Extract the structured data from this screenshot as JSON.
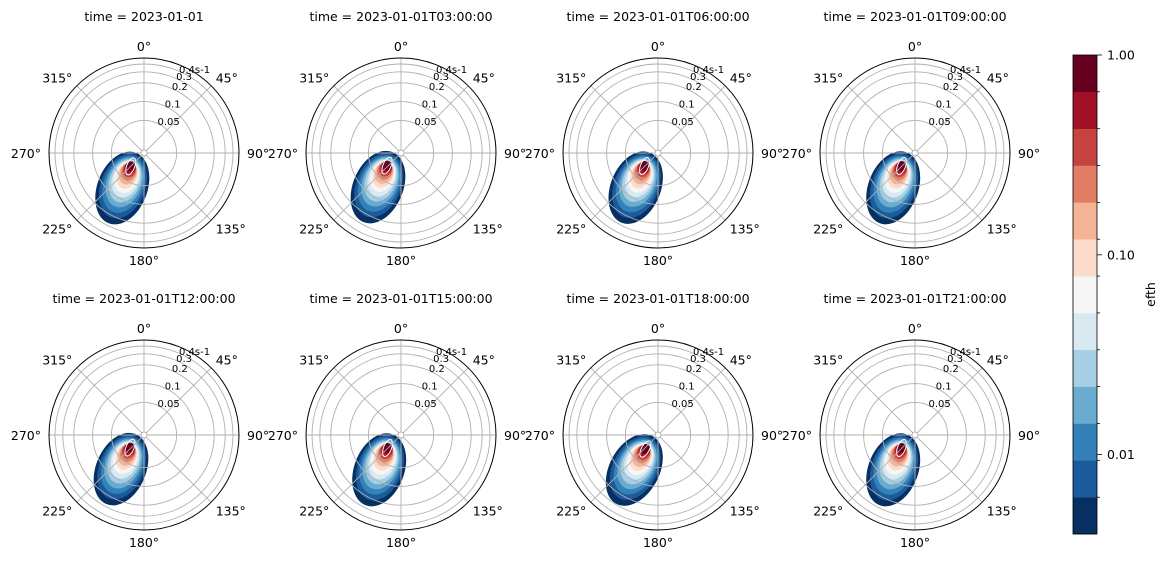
{
  "chart_data": {
    "type": "heatmap",
    "subtype": "polar-directional-spectrum",
    "panels": [
      {
        "title": "time = 2023-01-01",
        "peak_dir_deg": 225,
        "peak_freq": 0.03,
        "tail_dir_deg": 208,
        "tail_freq": 0.16
      },
      {
        "title": "time = 2023-01-01T03:00:00",
        "peak_dir_deg": 228,
        "peak_freq": 0.03,
        "tail_dir_deg": 210,
        "tail_freq": 0.16
      },
      {
        "title": "time = 2023-01-01T06:00:00",
        "peak_dir_deg": 226,
        "peak_freq": 0.03,
        "tail_dir_deg": 209,
        "tail_freq": 0.16
      },
      {
        "title": "time = 2023-01-01T09:00:00",
        "peak_dir_deg": 226,
        "peak_freq": 0.03,
        "tail_dir_deg": 208,
        "tail_freq": 0.16
      },
      {
        "title": "time = 2023-01-01T12:00:00",
        "peak_dir_deg": 228,
        "peak_freq": 0.03,
        "tail_dir_deg": 210,
        "tail_freq": 0.16
      },
      {
        "title": "time = 2023-01-01T15:00:00",
        "peak_dir_deg": 226,
        "peak_freq": 0.03,
        "tail_dir_deg": 208,
        "tail_freq": 0.16
      },
      {
        "title": "time = 2023-01-01T18:00:00",
        "peak_dir_deg": 222,
        "peak_freq": 0.03,
        "tail_dir_deg": 212,
        "tail_freq": 0.17
      },
      {
        "title": "time = 2023-01-01T21:00:00",
        "peak_dir_deg": 226,
        "peak_freq": 0.03,
        "tail_dir_deg": 208,
        "tail_freq": 0.16
      }
    ],
    "direction_ticks": [
      "0°",
      "45°",
      "90°",
      "135°",
      "180°",
      "225°",
      "270°",
      "315°"
    ],
    "direction_tick_deg": [
      0,
      45,
      90,
      135,
      180,
      225,
      270,
      315
    ],
    "radial_ticks": [
      {
        "value": 0.05,
        "label": "0.05"
      },
      {
        "value": 0.1,
        "label": "0.1"
      },
      {
        "value": 0.2,
        "label": "0.2"
      },
      {
        "value": 0.3,
        "label": "0.3"
      },
      {
        "value": 0.4,
        "label": "0.4s-1"
      }
    ],
    "radial_max": 0.5,
    "radial_scale": "log",
    "radial_min": 0.015,
    "colorbar": {
      "label": "efth",
      "scale": "log",
      "range": [
        0.004,
        1.0
      ],
      "tick_labels": [
        "1.00",
        "0.10",
        "0.01"
      ],
      "tick_values": [
        1.0,
        0.1,
        0.01
      ],
      "colormap": "RdBu_r",
      "levels": 12,
      "colors": [
        "#053061",
        "#1b5a9b",
        "#3480b9",
        "#6aacd0",
        "#a7cfe4",
        "#d8e9f1",
        "#f6f6f6",
        "#fbdbca",
        "#f5b396",
        "#e17e65",
        "#c7433f",
        "#a11228",
        "#67001f"
      ]
    },
    "grid": true
  }
}
